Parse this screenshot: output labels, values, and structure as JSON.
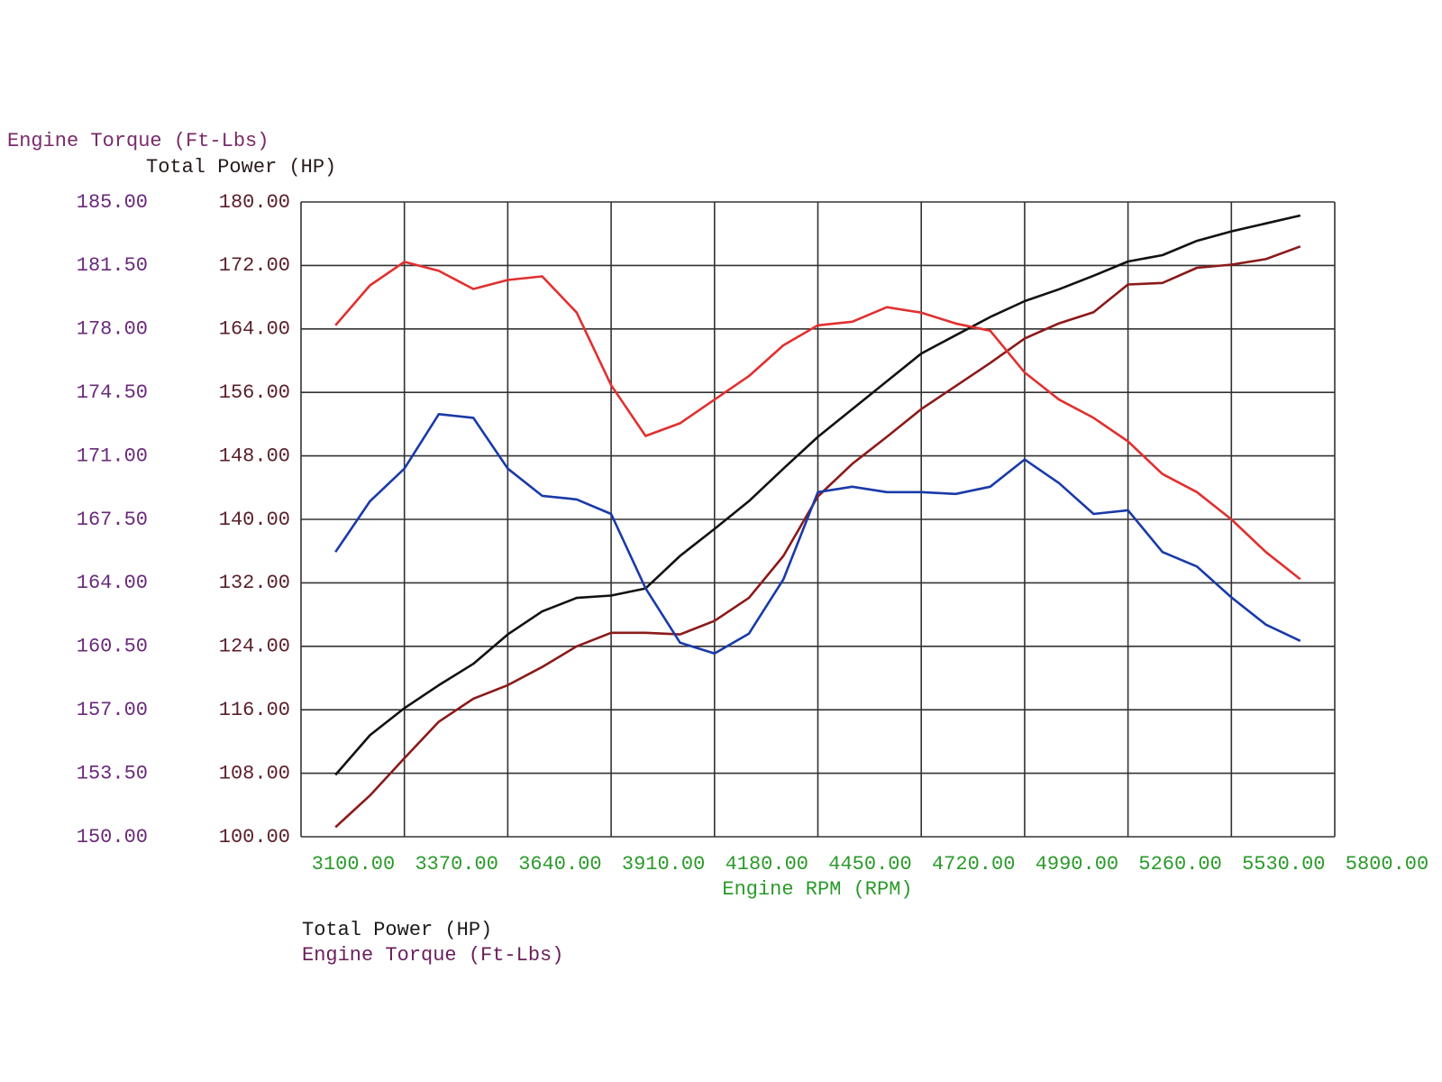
{
  "chart_data": {
    "type": "line",
    "y2_axis_title": "Engine Torque (Ft-Lbs)",
    "y_axis_title": "Total Power (HP)",
    "x_axis_title": "Engine RPM (RPM)",
    "legend": [
      {
        "label": "Total Power (HP)",
        "color": "#1a1a1a"
      },
      {
        "label": "Engine Torque (Ft-Lbs)",
        "color": "#6a1f5a"
      }
    ],
    "grid": true,
    "x": [
      3190,
      3280,
      3370,
      3460,
      3550,
      3640,
      3730,
      3820,
      3910,
      4000,
      4090,
      4180,
      4270,
      4360,
      4450,
      4540,
      4630,
      4720,
      4810,
      4900,
      4990,
      5080,
      5170,
      5260,
      5350,
      5440,
      5530,
      5620,
      5710
    ],
    "xlim": [
      3100,
      5800
    ],
    "xticks": [
      {
        "value": 3100,
        "label": "3100.00"
      },
      {
        "value": 3370,
        "label": "3370.00"
      },
      {
        "value": 3640,
        "label": "3640.00"
      },
      {
        "value": 3910,
        "label": "3910.00"
      },
      {
        "value": 4180,
        "label": "4180.00"
      },
      {
        "value": 4450,
        "label": "4450.00"
      },
      {
        "value": 4720,
        "label": "4720.00"
      },
      {
        "value": 4990,
        "label": "4990.00"
      },
      {
        "value": 5260,
        "label": "5260.00"
      },
      {
        "value": 5530,
        "label": "5530.00"
      },
      {
        "value": 5800,
        "label": "5800.00"
      }
    ],
    "ylim": [
      100,
      180
    ],
    "yticks": [
      {
        "value": 100,
        "label": "100.00"
      },
      {
        "value": 108,
        "label": "108.00"
      },
      {
        "value": 116,
        "label": "116.00"
      },
      {
        "value": 124,
        "label": "124.00"
      },
      {
        "value": 132,
        "label": "132.00"
      },
      {
        "value": 140,
        "label": "140.00"
      },
      {
        "value": 148,
        "label": "148.00"
      },
      {
        "value": 156,
        "label": "156.00"
      },
      {
        "value": 164,
        "label": "164.00"
      },
      {
        "value": 172,
        "label": "172.00"
      },
      {
        "value": 180,
        "label": "180.00"
      }
    ],
    "y2lim": [
      150,
      185
    ],
    "y2ticks": [
      {
        "value": 150,
        "label": "150.00"
      },
      {
        "value": 153.5,
        "label": "153.50"
      },
      {
        "value": 157,
        "label": "157.00"
      },
      {
        "value": 160.5,
        "label": "160.50"
      },
      {
        "value": 164,
        "label": "164.00"
      },
      {
        "value": 167.5,
        "label": "167.50"
      },
      {
        "value": 171,
        "label": "171.00"
      },
      {
        "value": 174.5,
        "label": "174.50"
      },
      {
        "value": 178,
        "label": "178.00"
      },
      {
        "value": 181.5,
        "label": "181.50"
      },
      {
        "value": 185,
        "label": "185.00"
      }
    ],
    "series": [
      {
        "color": "#111111",
        "values": [
          107.8,
          112.8,
          116.2,
          119.1,
          121.8,
          125.5,
          128.4,
          130.1,
          130.4,
          131.3,
          135.4,
          138.8,
          142.3,
          146.4,
          150.4,
          153.9,
          157.4,
          160.9,
          163.2,
          165.5,
          167.5,
          169.0,
          170.7,
          172.5,
          173.3,
          175.1,
          176.3,
          177.3,
          178.3
        ]
      },
      {
        "color": "#8b1a1a",
        "values": [
          101.2,
          105.2,
          109.9,
          114.5,
          117.4,
          119.1,
          121.4,
          124.0,
          125.7,
          125.7,
          125.5,
          127.2,
          130.1,
          135.4,
          142.9,
          147.0,
          150.4,
          153.9,
          156.8,
          159.7,
          162.8,
          164.7,
          166.1,
          169.6,
          169.8,
          171.7,
          172.1,
          172.8,
          174.4
        ]
      },
      {
        "color": "#e03030",
        "axis": "y2",
        "values": [
          178.2,
          180.4,
          181.7,
          181.2,
          180.2,
          180.7,
          180.9,
          178.9,
          174.9,
          172.1,
          172.8,
          174.1,
          175.4,
          177.1,
          178.2,
          178.4,
          179.2,
          178.9,
          178.3,
          177.9,
          175.6,
          174.1,
          173.1,
          171.8,
          170.0,
          169.0,
          167.5,
          165.7,
          164.2
        ]
      },
      {
        "color": "#1a3aa8",
        "axis": "y2",
        "values": [
          165.7,
          168.5,
          170.3,
          173.3,
          173.1,
          170.3,
          168.8,
          168.6,
          167.8,
          163.7,
          160.7,
          160.1,
          161.2,
          164.2,
          169.0,
          169.3,
          169.0,
          169.0,
          168.9,
          169.3,
          170.8,
          169.5,
          167.8,
          168.0,
          165.7,
          164.9,
          163.2,
          161.7,
          160.8
        ]
      }
    ]
  }
}
